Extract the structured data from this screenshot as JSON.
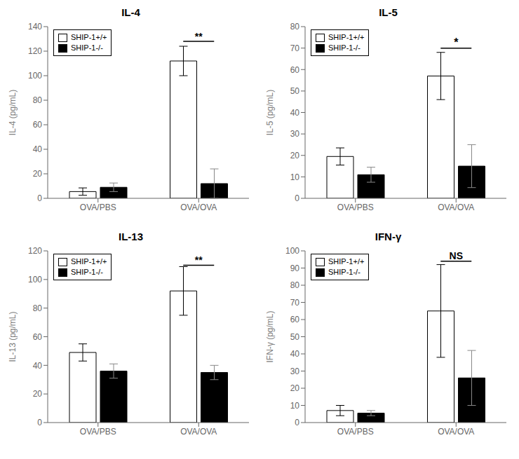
{
  "chart_data": [
    {
      "type": "bar",
      "title": "IL-4",
      "y_label": "IL-4 (pg/mL)",
      "categories": [
        "OVA/PBS",
        "OVA/OVA"
      ],
      "series": [
        {
          "name": "SHIP-1+/+",
          "color": "#ffffff",
          "values": [
            5.5,
            112.0
          ],
          "errors": [
            3.0,
            12.0
          ]
        },
        {
          "name": "SHIP-1-/-",
          "color": "#000000",
          "values": [
            9.0,
            12.0
          ],
          "errors": [
            3.5,
            12.0
          ]
        }
      ],
      "ylim": [
        0,
        140
      ],
      "yticks": [
        0,
        20,
        40,
        60,
        80,
        100,
        120,
        140
      ],
      "legend": "upper left",
      "grid": false,
      "annotations": [
        {
          "text": "**",
          "category": "OVA/OVA",
          "bracket_y": 128,
          "text_y": 129
        }
      ]
    },
    {
      "type": "bar",
      "title": "IL-5",
      "y_label": "IL-5 (pg/mL)",
      "categories": [
        "OVA/PBS",
        "OVA/OVA"
      ],
      "series": [
        {
          "name": "SHIP-1+/+",
          "color": "#ffffff",
          "values": [
            19.5,
            57.0
          ],
          "errors": [
            4.0,
            11.0
          ]
        },
        {
          "name": "SHIP-1-/-",
          "color": "#000000",
          "values": [
            11.0,
            15.0
          ],
          "errors": [
            3.5,
            10.0
          ]
        }
      ],
      "ylim": [
        0,
        80
      ],
      "yticks": [
        0,
        10,
        20,
        30,
        40,
        50,
        60,
        70,
        80
      ],
      "legend": "upper left",
      "grid": false,
      "annotations": [
        {
          "text": "*",
          "category": "OVA/OVA",
          "bracket_y": 70,
          "text_y": 71
        }
      ]
    },
    {
      "type": "bar",
      "title": "IL-13",
      "y_label": "IL-13 (pg/mL)",
      "categories": [
        "OVA/PBS",
        "OVA/OVA"
      ],
      "series": [
        {
          "name": "SHIP-1+/+",
          "color": "#ffffff",
          "values": [
            49.0,
            92.0
          ],
          "errors": [
            6.0,
            17.0
          ]
        },
        {
          "name": "SHIP-1-/-",
          "color": "#000000",
          "values": [
            36.0,
            35.0
          ],
          "errors": [
            5.0,
            5.0
          ]
        }
      ],
      "ylim": [
        0,
        120
      ],
      "yticks": [
        0,
        20,
        40,
        60,
        80,
        100,
        120
      ],
      "legend": "upper left",
      "grid": false,
      "annotations": [
        {
          "text": "**",
          "category": "OVA/OVA",
          "bracket_y": 110,
          "text_y": 111
        }
      ]
    },
    {
      "type": "bar",
      "title": "IFN-γ",
      "y_label": "IFN-γ (pg/mL)",
      "categories": [
        "OVA/PBS",
        "OVA/OVA"
      ],
      "series": [
        {
          "name": "SHIP-1+/+",
          "color": "#ffffff",
          "values": [
            7.0,
            65.0
          ],
          "errors": [
            3.0,
            27.0
          ]
        },
        {
          "name": "SHIP-1-/-",
          "color": "#000000",
          "values": [
            5.5,
            26.0
          ],
          "errors": [
            1.5,
            16.0
          ]
        }
      ],
      "ylim": [
        0,
        100
      ],
      "yticks": [
        0,
        10,
        20,
        30,
        40,
        50,
        60,
        70,
        80,
        90,
        100
      ],
      "legend": "upper left",
      "grid": false,
      "annotations": [
        {
          "text": "NS",
          "category": "OVA/OVA",
          "bracket_y": 94,
          "text_y": 95
        }
      ]
    }
  ]
}
